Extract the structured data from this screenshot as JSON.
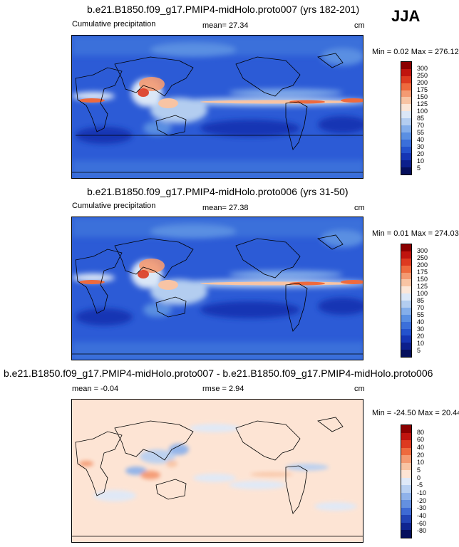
{
  "season": "JJA",
  "panels": [
    {
      "title": "b.e21.B1850.f09_g17.PMIP4-midHolo.proto007 (yrs 182-201)",
      "left_label": "Cumulative precipitation",
      "center_label": "mean=  27.34",
      "units": "cm",
      "minmax": "Min =   0.02 Max = 276.12",
      "colorbar": {
        "levels": [
          "300",
          "250",
          "200",
          "175",
          "150",
          "125",
          "100",
          "85",
          "70",
          "55",
          "40",
          "30",
          "20",
          "10",
          "5"
        ],
        "colors": [
          "#8b0000",
          "#c0140e",
          "#dd3a20",
          "#ee6a3e",
          "#f49a72",
          "#f8c4a4",
          "#fbe6d8",
          "#dbe7f7",
          "#b3cdf0",
          "#84aeea",
          "#5a8fe2",
          "#3b6fda",
          "#2452cd",
          "#1535b4",
          "#0c1f8c",
          "#050f5c"
        ]
      }
    },
    {
      "title": "b.e21.B1850.f09_g17.PMIP4-midHolo.proto006 (yrs 31-50)",
      "left_label": "Cumulative precipitation",
      "center_label": "mean=  27.38",
      "units": "cm",
      "minmax": "Min =   0.01 Max = 274.03",
      "colorbar": {
        "levels": [
          "300",
          "250",
          "200",
          "175",
          "150",
          "125",
          "100",
          "85",
          "70",
          "55",
          "40",
          "30",
          "20",
          "10",
          "5"
        ],
        "colors": [
          "#8b0000",
          "#c0140e",
          "#dd3a20",
          "#ee6a3e",
          "#f49a72",
          "#f8c4a4",
          "#fbe6d8",
          "#dbe7f7",
          "#b3cdf0",
          "#84aeea",
          "#5a8fe2",
          "#3b6fda",
          "#2452cd",
          "#1535b4",
          "#0c1f8c",
          "#050f5c"
        ]
      }
    },
    {
      "title": "b.e21.B1850.f09_g17.PMIP4-midHolo.proto007 - b.e21.B1850.f09_g17.PMIP4-midHolo.proto006",
      "left_label": "mean =  -0.04",
      "center_label": "rmse =   2.94",
      "units": "cm",
      "minmax": "Min = -24.50 Max =  20.44",
      "colorbar": {
        "levels": [
          "80",
          "60",
          "40",
          "20",
          "10",
          "5",
          "0",
          "-5",
          "-10",
          "-20",
          "-30",
          "-40",
          "-60",
          "-80"
        ],
        "colors": [
          "#8b0000",
          "#c0140e",
          "#dd3a20",
          "#ee6a3e",
          "#f49a72",
          "#f8c4a4",
          "#fde4d4",
          "#dfe9f8",
          "#b9d0f1",
          "#8fb2ea",
          "#6490e0",
          "#3e6ad4",
          "#2244b6",
          "#0f2490",
          "#050f5c"
        ]
      }
    }
  ]
}
